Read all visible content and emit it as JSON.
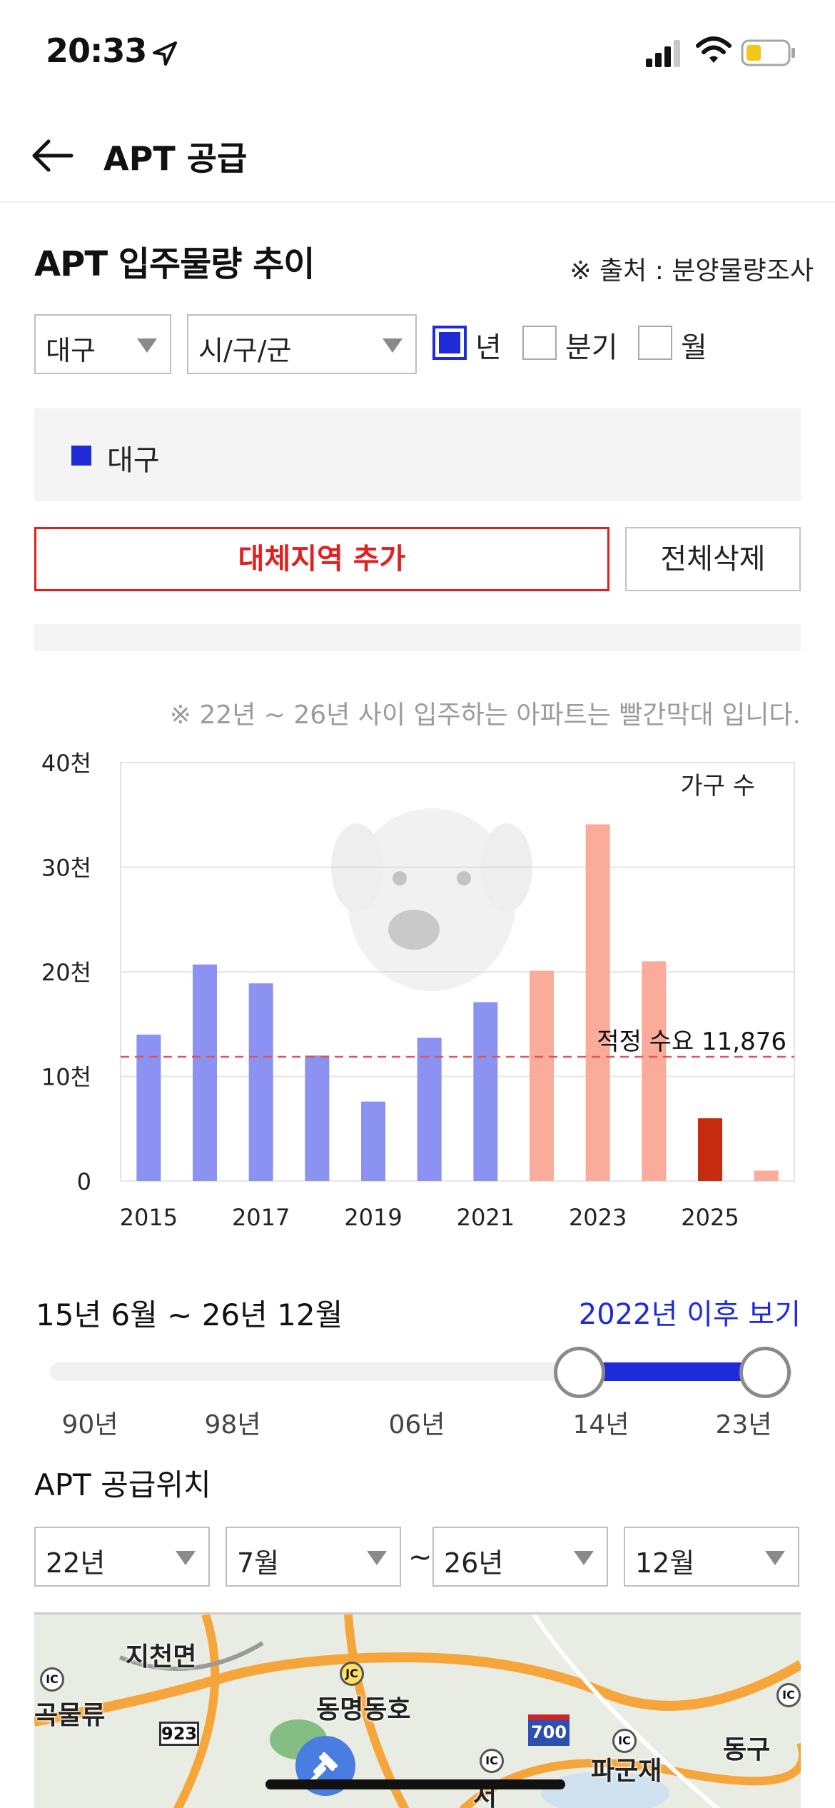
{
  "status_bar": {
    "time": "20:33"
  },
  "nav": {
    "title": "APT 공급",
    "back_icon": "arrow-left-icon"
  },
  "section": {
    "title": "APT 입주물량 추이",
    "source": "※ 출처 : 분양물량조사"
  },
  "filters": {
    "region": "대구",
    "district": "시/구/군",
    "periods": [
      {
        "label": "년",
        "checked": true
      },
      {
        "label": "분기",
        "checked": false
      },
      {
        "label": "월",
        "checked": false
      }
    ]
  },
  "legend": {
    "label": "대구",
    "color": "#1f2bd9"
  },
  "buttons": {
    "add_region": "대체지역 추가",
    "delete_all": "전체삭제"
  },
  "chart_note": "※ 22년 ~ 26년 사이 입주하는 아파트는 빨간막대 입니다.",
  "chart_data": {
    "type": "bar",
    "unit_label": "가구 수",
    "categories": [
      "2015",
      "2016",
      "2017",
      "2018",
      "2019",
      "2020",
      "2021",
      "2022",
      "2023",
      "2024",
      "2025",
      "2026"
    ],
    "x_tick_labels": [
      "2015",
      "2017",
      "2019",
      "2021",
      "2023",
      "2025"
    ],
    "y_ticks": [
      "0",
      "10천",
      "20천",
      "30천",
      "40천"
    ],
    "ylim": [
      0,
      40000
    ],
    "values": [
      14000,
      20700,
      18900,
      12000,
      7600,
      13700,
      17100,
      20100,
      34100,
      21000,
      6000,
      1000
    ],
    "bar_colors": [
      "#8b92f2",
      "#8b92f2",
      "#8b92f2",
      "#8b92f2",
      "#8b92f2",
      "#8b92f2",
      "#8b92f2",
      "#fbab9a",
      "#fbab9a",
      "#fbab9a",
      "#c62b10",
      "#fbab9a"
    ],
    "reference_line": {
      "label": "적정 수요 11,876",
      "value": 11876,
      "color": "#e0555a"
    },
    "grid": true
  },
  "range": {
    "label": "15년 6월 ~ 26년 12월",
    "link": "2022년 이후 보기",
    "ticks": [
      "90년",
      "98년",
      "06년",
      "14년",
      "23년"
    ]
  },
  "location": {
    "title": "APT 공급위치",
    "start_year": "22년",
    "start_month": "7월",
    "separator": "~",
    "end_year": "26년",
    "end_month": "12월"
  },
  "map": {
    "labels": [
      "지천면",
      "곡물류",
      "동명동호",
      "파군재",
      "동구",
      "서"
    ],
    "badges": [
      "IC",
      "JC",
      "923",
      "700",
      "IC",
      "IC",
      "IC"
    ]
  }
}
